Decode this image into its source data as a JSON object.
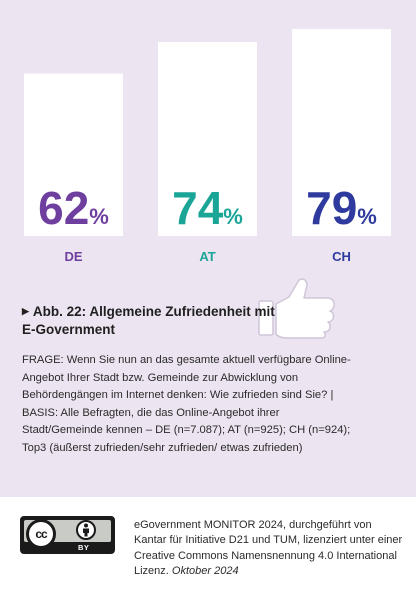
{
  "chart_data": {
    "type": "bar",
    "categories": [
      "DE",
      "AT",
      "CH"
    ],
    "values": [
      62,
      74,
      79
    ],
    "value_labels": [
      "62",
      "74",
      "79"
    ],
    "unit": "%",
    "colors": [
      "#6f3fa0",
      "#1aa597",
      "#2e3a9e"
    ],
    "bar_color": "#ffffff",
    "ylim": [
      0,
      100
    ]
  },
  "caption": {
    "title": "Abb. 22: Allgemeine Zufriedenheit mit E-Government"
  },
  "question": {
    "text": "FRAGE: Wenn Sie nun an das gesamte aktuell verfügbare Online-Angebot Ihrer Stadt bzw. Gemeinde zur Abwicklung von Behördengängen im Internet denken: Wie zufrieden sind Sie? | BASIS: Alle Befragten, die das Online-Angebot ihrer Stadt/Gemeinde kennen – DE (n=7.087); AT (n=925); CH (n=924); Top3 (äußerst zufrieden/sehr zufrieden/ etwas zufrieden)"
  },
  "footer": {
    "license_text": "eGovernment MONITOR 2024, durchgeführt von Kantar für Initiative D21 und TUM, lizenziert unter einer Creative Commons Namensnennung 4.0 International Lizenz.",
    "date": "Oktober 2024",
    "badge_cc": "cc",
    "badge_by": "BY",
    "badge_icon": "creative-commons-by-icon"
  },
  "icons": {
    "thumb": "thumbs-up-icon",
    "caption_marker": "triangle-right-icon"
  }
}
